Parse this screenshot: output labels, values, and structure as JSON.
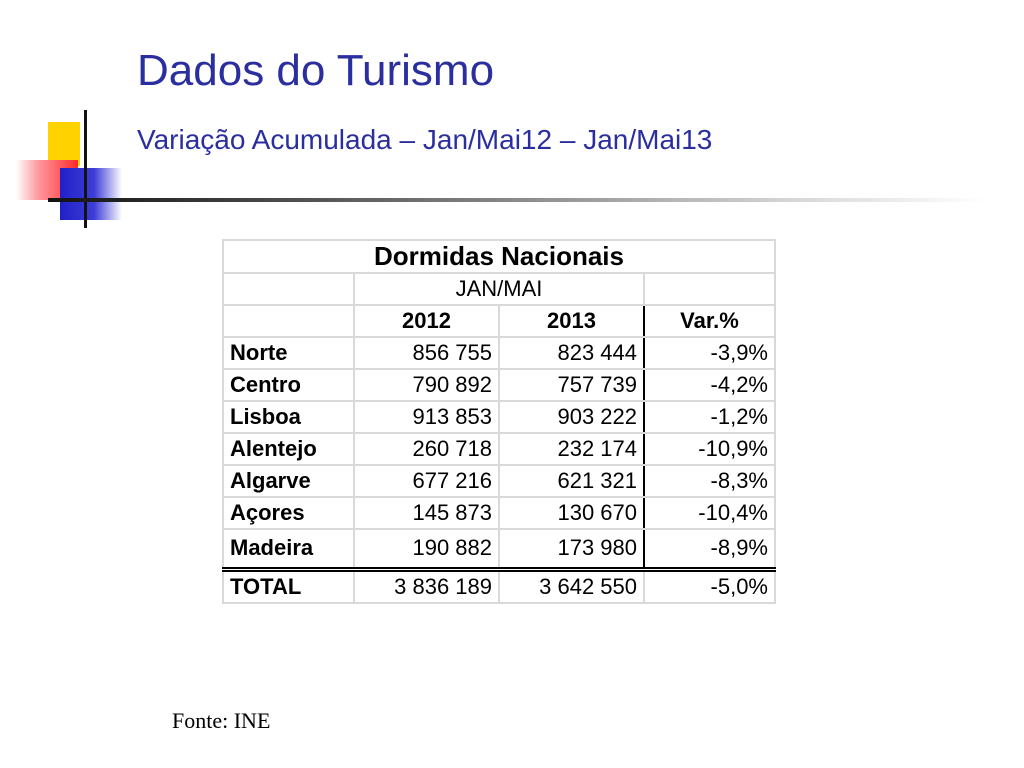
{
  "slide": {
    "title": "Dados do Turismo",
    "subtitle": "Variação Acumulada – Jan/Mai12 – Jan/Mai13",
    "source": "Fonte: INE"
  },
  "colors": {
    "title": "#2a2e9e",
    "accent_yellow": "#ffd200",
    "accent_red": "#ff2a2a",
    "accent_blue": "#2020c8"
  },
  "table": {
    "title": "Dormidas Nacionais",
    "period": "JAN/MAI",
    "columns": [
      "2012",
      "2013",
      "Var.%"
    ],
    "rows": [
      {
        "region": "Norte",
        "y2012": "856 755",
        "y2013": "823 444",
        "var": "-3,9%"
      },
      {
        "region": "Centro",
        "y2012": "790 892",
        "y2013": "757 739",
        "var": "-4,2%"
      },
      {
        "region": "Lisboa",
        "y2012": "913 853",
        "y2013": "903 222",
        "var": "-1,2%"
      },
      {
        "region": "Alentejo",
        "y2012": "260 718",
        "y2013": "232 174",
        "var": "-10,9%"
      },
      {
        "region": "Algarve",
        "y2012": "677 216",
        "y2013": "621 321",
        "var": "-8,3%"
      },
      {
        "region": "Açores",
        "y2012": "145 873",
        "y2013": "130 670",
        "var": "-10,4%"
      },
      {
        "region": "Madeira",
        "y2012": "190 882",
        "y2013": "173 980",
        "var": "-8,9%"
      }
    ],
    "total": {
      "region": "TOTAL",
      "y2012": "3 836 189",
      "y2013": "3 642 550",
      "var": "-5,0%"
    }
  }
}
